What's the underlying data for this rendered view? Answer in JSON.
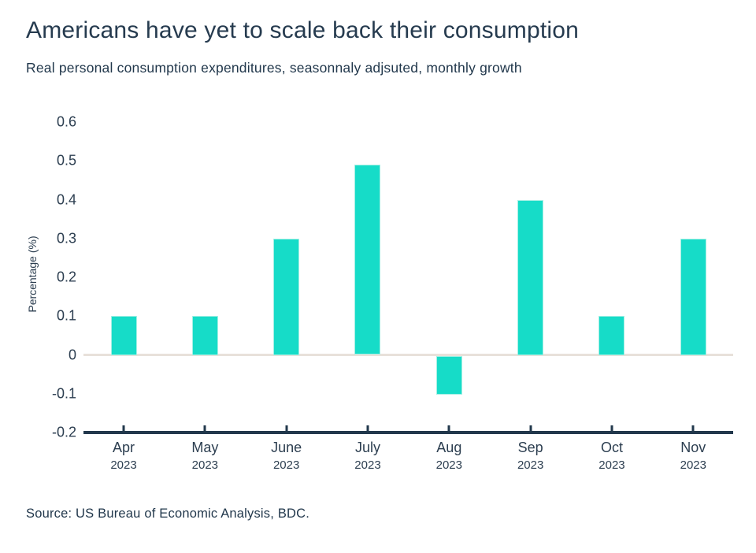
{
  "header": {
    "title": "Americans have yet to scale back their consumption",
    "subtitle": "Real personal consumption expenditures, seasonnaly adjsuted, monthly growth"
  },
  "chart_data": {
    "type": "bar",
    "title": "Americans have yet to scale back their consumption",
    "subtitle": "Real personal consumption expenditures, seasonnaly adjsuted, monthly growth",
    "categories": [
      "Apr 2023",
      "May 2023",
      "June 2023",
      "July 2023",
      "Aug 2023",
      "Sep 2023",
      "Oct 2023",
      "Nov 2023"
    ],
    "x_ticks": [
      {
        "month": "Apr",
        "year": "2023"
      },
      {
        "month": "May",
        "year": "2023"
      },
      {
        "month": "June",
        "year": "2023"
      },
      {
        "month": "July",
        "year": "2023"
      },
      {
        "month": "Aug",
        "year": "2023"
      },
      {
        "month": "Sep",
        "year": "2023"
      },
      {
        "month": "Oct",
        "year": "2023"
      },
      {
        "month": "Nov",
        "year": "2023"
      }
    ],
    "values": [
      0.1,
      0.1,
      0.3,
      0.49,
      -0.1,
      0.4,
      0.1,
      0.3
    ],
    "xlabel": "",
    "ylabel": "Percentage (%)",
    "ylim": [
      -0.2,
      0.6
    ],
    "y_ticks": [
      "0.6",
      "0.5",
      "0.4",
      "0.3",
      "0.2",
      "0.1",
      "0",
      "-0.1",
      "-0.2"
    ],
    "grid": false,
    "legend_position": "none"
  },
  "footer": {
    "source": "Source: US Bureau of Economic Analysis, BDC."
  },
  "colors": {
    "bar_fill": "#16dcc8",
    "bar_edge": "#a4efe4",
    "axis_line": "#22384c",
    "zero_line": "#e8e1da",
    "text": "#263b4f"
  }
}
